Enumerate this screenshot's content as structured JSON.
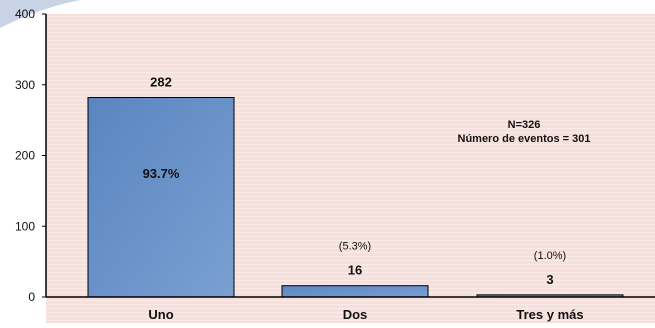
{
  "colors": {
    "plot_background": "#f7e0dc",
    "page_background": "#ffffff",
    "corner_tint": "#c9d3e6",
    "stripe": "#ffffff",
    "bar_fill_top": "#5a85c0",
    "bar_fill_bottom": "#7aa0d2",
    "bar_stroke": "#000000",
    "axis": "#000000",
    "text": "#111111"
  },
  "chart_data": {
    "type": "bar",
    "categories": [
      "Uno",
      "Dos",
      "Tres y más"
    ],
    "values": [
      282,
      16,
      3
    ],
    "value_labels": [
      "282",
      "16",
      "3"
    ],
    "percent_labels": [
      "93.7%",
      "(5.3%)",
      "(1.0%)"
    ],
    "ylim": [
      0,
      400
    ],
    "yticks": [
      0,
      100,
      200,
      300,
      400
    ],
    "ytick_labels": [
      "0",
      "100",
      "200",
      "300",
      "400"
    ],
    "annotation": [
      "N=326",
      "Número de eventos = 301"
    ],
    "grid": false,
    "legend": "none"
  }
}
